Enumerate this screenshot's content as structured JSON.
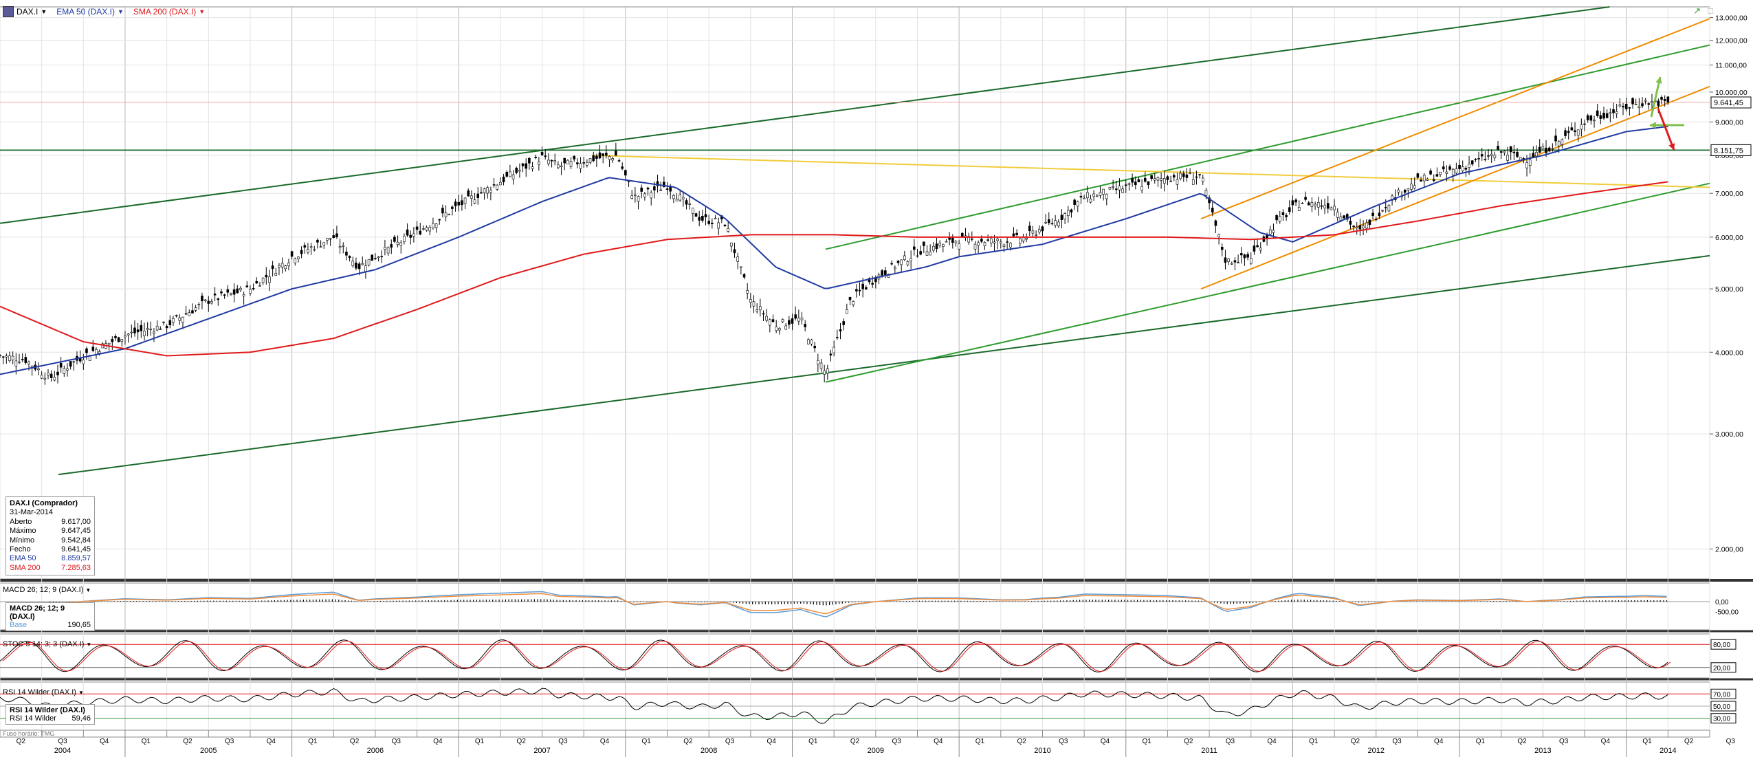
{
  "toolbar": {
    "symbol": "DAX.I",
    "ema_label": "EMA 50 (DAX.I)",
    "sma_label": "SMA 200 (DAX.I)",
    "ema_color": "#1f3aa3",
    "sma_color": "#e0191a",
    "symbol_icon": "chart-icon",
    "right_icons": [
      "drawing-trend-icon",
      "maximize-icon"
    ]
  },
  "price_labels": {
    "last": "9.641,45",
    "level": "8.151,75"
  },
  "infobox": {
    "title": "DAX.I (Comprador)",
    "date": "31-Mar-2014",
    "rows": [
      {
        "label": "Aberto",
        "value": "9.617,00"
      },
      {
        "label": "Máximo",
        "value": "9.647,45"
      },
      {
        "label": "Mínimo",
        "value": "9.542,84"
      },
      {
        "label": "Fecho",
        "value": "9.641,45"
      },
      {
        "label": "EMA 50",
        "value": "8.859,57"
      },
      {
        "label": "SMA 200",
        "value": "7.285,63"
      }
    ]
  },
  "macd": {
    "header": "MACD 26; 12; 9 (DAX.I)",
    "box_title": "MACD 26; 12; 9 (DAX.I)",
    "box_label": "Base",
    "box_value": "190,65",
    "ticks": [
      "0,00",
      "-500,00"
    ]
  },
  "stoc": {
    "header": "STOC 5 14; 3; 3 (DAX.I)",
    "ticks": [
      "80,00",
      "20,00"
    ]
  },
  "rsi": {
    "header": "RSI 14 Wilder (DAX.I)",
    "box_title": "RSI 14 Wilder (DAX.I)",
    "box_label": "RSI 14 Wilder",
    "box_value": "59,46",
    "ticks": [
      "70,00",
      "50,00",
      "30,00"
    ]
  },
  "timezone": "Fuso horário: TMG",
  "chart_data": {
    "type": "line",
    "title": "DAX.I",
    "scale": "log",
    "y_ticks": [
      "2.000,00",
      "3.000,00",
      "4.000,00",
      "5.000,00",
      "6.000,00",
      "7.000,00",
      "8.000,00",
      "9.000,00",
      "10.000,00",
      "11.000,00",
      "12.000,00",
      "13.000,00"
    ],
    "y_tick_values": [
      2000,
      3000,
      4000,
      5000,
      6000,
      7000,
      8000,
      9000,
      10000,
      11000,
      12000,
      13000
    ],
    "ylim": [
      1800,
      13500
    ],
    "x_start": 2004.25,
    "x_end": 2014.5,
    "years": [
      "2004",
      "2005",
      "2006",
      "2007",
      "2008",
      "2009",
      "2010",
      "2011",
      "2012",
      "2013",
      "2014"
    ],
    "quarters": [
      "Q1",
      "Q2",
      "Q3",
      "Q4"
    ],
    "series": [
      {
        "name": "DAX.I",
        "color": "#000000",
        "x": [
          2004.25,
          2004.4,
          2004.55,
          2004.75,
          2005.0,
          2005.25,
          2005.5,
          2005.75,
          2006.0,
          2006.25,
          2006.4,
          2006.5,
          2006.75,
          2007.0,
          2007.25,
          2007.5,
          2007.6,
          2007.8,
          2007.95,
          2008.05,
          2008.25,
          2008.45,
          2008.6,
          2008.75,
          2008.9,
          2009.05,
          2009.2,
          2009.35,
          2009.5,
          2009.75,
          2010.0,
          2010.25,
          2010.4,
          2010.6,
          2010.75,
          2011.0,
          2011.25,
          2011.45,
          2011.6,
          2011.75,
          2011.9,
          2012.05,
          2012.25,
          2012.4,
          2012.6,
          2012.75,
          2013.0,
          2013.25,
          2013.4,
          2013.6,
          2013.75,
          2013.95,
          2014.1,
          2014.25
        ],
        "values": [
          3950,
          3900,
          3650,
          3950,
          4250,
          4400,
          4800,
          5000,
          5600,
          6000,
          5400,
          5600,
          6100,
          6700,
          7300,
          7950,
          7700,
          7900,
          8000,
          6900,
          7200,
          6400,
          6300,
          4800,
          4400,
          4500,
          3700,
          4800,
          5200,
          5700,
          5950,
          5900,
          6000,
          6400,
          6900,
          7150,
          7400,
          7450,
          5500,
          5600,
          6300,
          6800,
          6700,
          6100,
          6900,
          7300,
          7650,
          8100,
          7900,
          8400,
          9000,
          9400,
          9650,
          9641
        ]
      },
      {
        "name": "EMA 50",
        "color": "#1f3aa3",
        "x": [
          2004.25,
          2005.0,
          2005.5,
          2006.0,
          2006.5,
          2007.0,
          2007.5,
          2007.9,
          2008.3,
          2008.6,
          2008.9,
          2009.2,
          2009.5,
          2009.8,
          2010.0,
          2010.5,
          2011.0,
          2011.45,
          2011.8,
          2012.0,
          2012.5,
          2013.0,
          2013.5,
          2014.0,
          2014.25
        ],
        "values": [
          3700,
          4050,
          4500,
          5000,
          5350,
          6000,
          6800,
          7400,
          7150,
          6400,
          5400,
          5000,
          5200,
          5400,
          5600,
          5850,
          6400,
          7000,
          6100,
          5900,
          6700,
          7500,
          8000,
          8700,
          8860
        ]
      },
      {
        "name": "SMA 200",
        "color": "#e0191a",
        "x": [
          2004.25,
          2004.75,
          2005.25,
          2005.75,
          2006.25,
          2006.75,
          2007.25,
          2007.75,
          2008.25,
          2008.75,
          2009.25,
          2009.75,
          2010.25,
          2010.75,
          2011.25,
          2011.75,
          2012.25,
          2012.75,
          2013.25,
          2013.75,
          2014.25
        ],
        "values": [
          4700,
          4150,
          3950,
          4000,
          4200,
          4650,
          5200,
          5650,
          5950,
          6050,
          6050,
          6000,
          6000,
          6000,
          6000,
          5950,
          6050,
          6350,
          6700,
          7000,
          7290
        ]
      }
    ]
  }
}
